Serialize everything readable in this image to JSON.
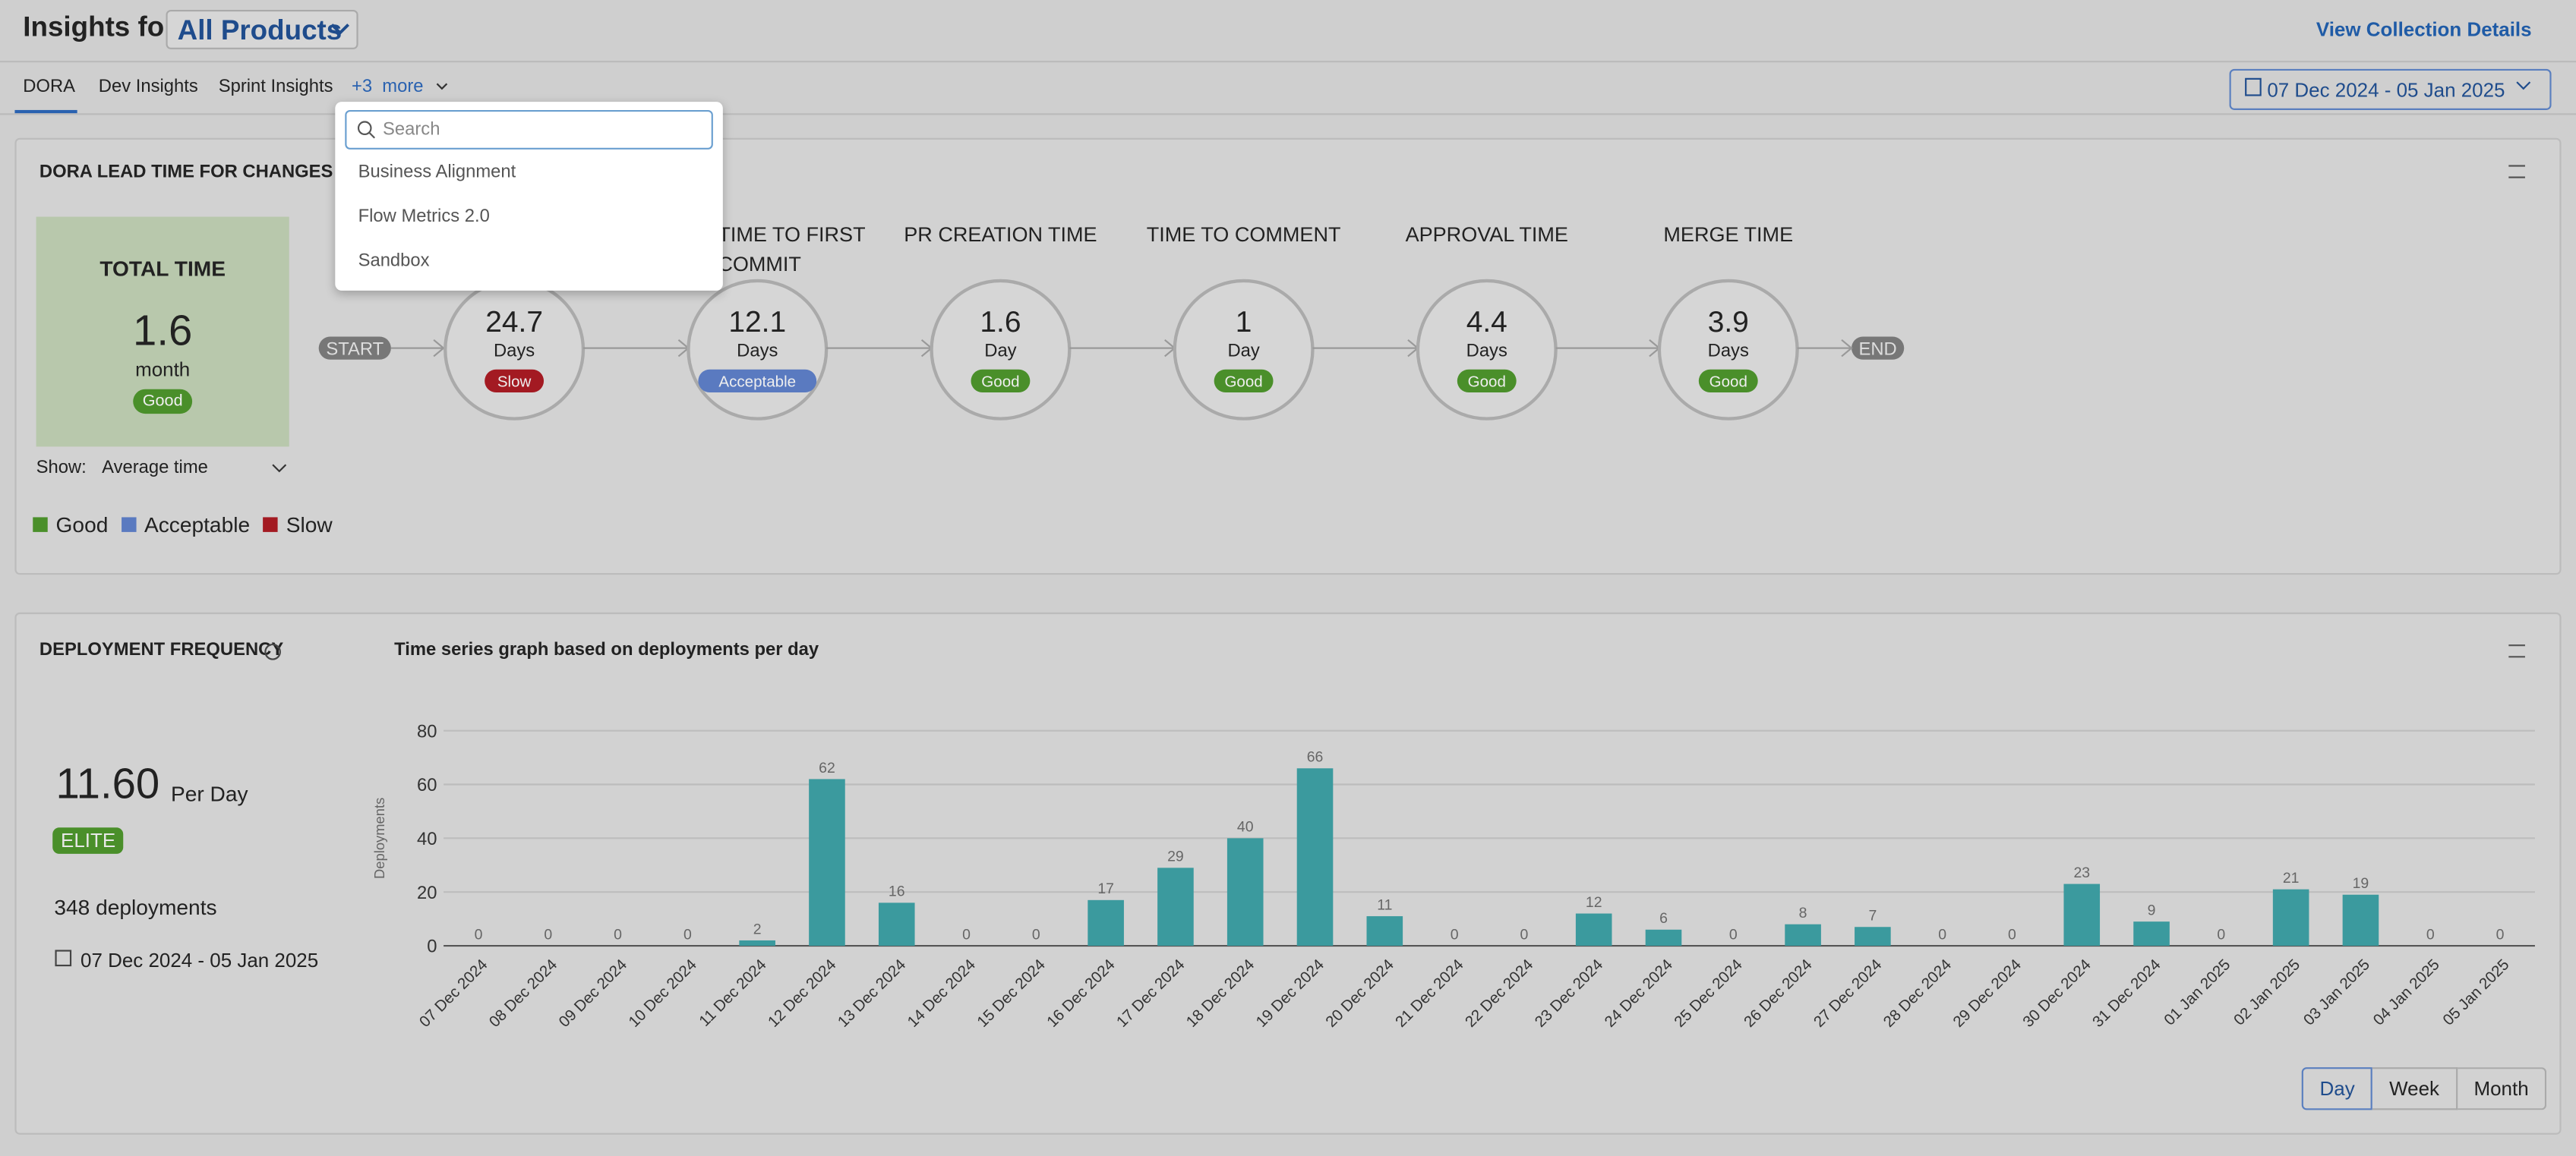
{
  "header": {
    "title": "Insights for",
    "product": "All Products",
    "link": "View Collection Details"
  },
  "tabs": [
    "DORA",
    "Dev Insights",
    "Sprint Insights"
  ],
  "more_tab": "+3  more",
  "date_range": "07 Dec 2024 - 05 Jan 2025",
  "dropdown": {
    "placeholder": "Search",
    "items": [
      "Business Alignment",
      "Flow Metrics 2.0",
      "Sandbox"
    ]
  },
  "lead_time": {
    "title": "DORA LEAD TIME FOR CHANGES REP",
    "total": {
      "label": "TOTAL TIME",
      "value": "1.6",
      "unit": "month",
      "status": "Good"
    },
    "start": "START",
    "end": "END",
    "stages": [
      {
        "label": null,
        "value": "24.7",
        "unit": "Days",
        "status": "Slow"
      },
      {
        "label": "TIME TO FIRST COMMIT",
        "value": "12.1",
        "unit": "Days",
        "status": "Acceptable"
      },
      {
        "label": "PR CREATION TIME",
        "value": "1.6",
        "unit": "Day",
        "status": "Good"
      },
      {
        "label": "TIME TO COMMENT",
        "value": "1",
        "unit": "Day",
        "status": "Good"
      },
      {
        "label": "APPROVAL TIME",
        "value": "4.4",
        "unit": "Days",
        "status": "Good"
      },
      {
        "label": "MERGE TIME",
        "value": "3.9",
        "unit": "Days",
        "status": "Good"
      }
    ],
    "show_label": "Show:",
    "show_value": "Average time",
    "legend": [
      "Good",
      "Acceptable",
      "Slow"
    ]
  },
  "deployment": {
    "title": "DEPLOYMENT FREQUENCY",
    "value": "11.60",
    "unit": "Per Day",
    "badge": "ELITE",
    "count": "348 deployments",
    "date_range": "07 Dec 2024 - 05 Jan 2025",
    "buttons": [
      "Day",
      "Week",
      "Month"
    ]
  },
  "chart_data": {
    "type": "bar",
    "title": "Time series graph based on deployments per day",
    "y_label": "Deployments",
    "categories": [
      "07 Dec 2024",
      "08 Dec 2024",
      "09 Dec 2024",
      "10 Dec 2024",
      "11 Dec 2024",
      "12 Dec 2024",
      "13 Dec 2024",
      "14 Dec 2024",
      "15 Dec 2024",
      "16 Dec 2024",
      "17 Dec 2024",
      "18 Dec 2024",
      "19 Dec 2024",
      "20 Dec 2024",
      "21 Dec 2024",
      "22 Dec 2024",
      "23 Dec 2024",
      "24 Dec 2024",
      "25 Dec 2024",
      "26 Dec 2024",
      "27 Dec 2024",
      "28 Dec 2024",
      "29 Dec 2024",
      "30 Dec 2024",
      "31 Dec 2024",
      "01 Jan 2025",
      "02 Jan 2025",
      "03 Jan 2025",
      "04 Jan 2025",
      "05 Jan 2025"
    ],
    "values": [
      0,
      0,
      0,
      0,
      2,
      62,
      16,
      0,
      0,
      17,
      29,
      40,
      66,
      11,
      0,
      0,
      12,
      6,
      0,
      8,
      7,
      0,
      0,
      23,
      9,
      0,
      21,
      19,
      0,
      0
    ],
    "color": "#3b9a9e",
    "ylim": [
      0,
      80
    ],
    "yticks": [
      0,
      20,
      40,
      60,
      80
    ],
    "grid": true
  }
}
